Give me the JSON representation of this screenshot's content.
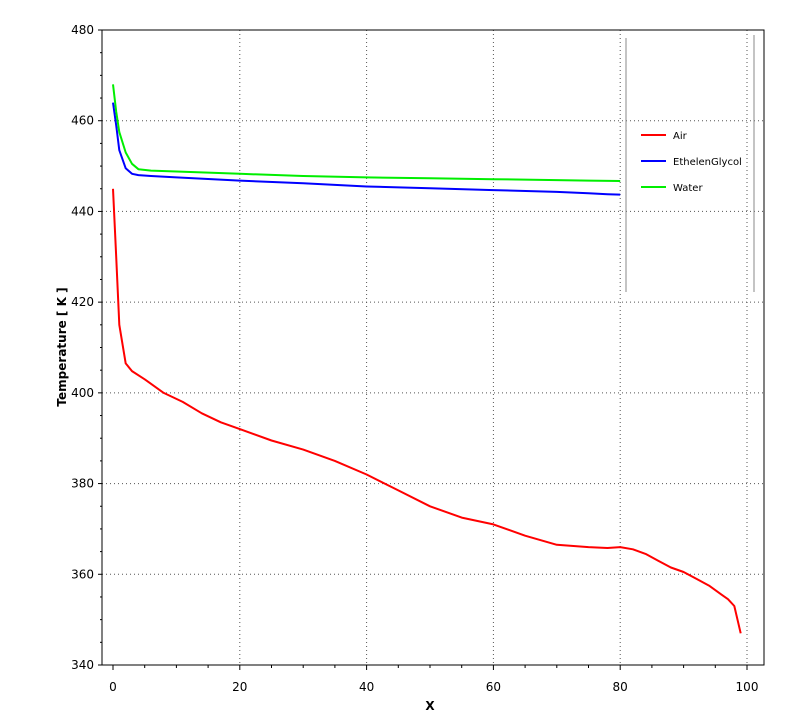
{
  "chart_data": {
    "type": "line",
    "title": "",
    "xlabel": "X",
    "ylabel": "Temperature [ K ]",
    "xlim": [
      0,
      100
    ],
    "ylim": [
      340,
      480
    ],
    "xticks": [
      0,
      20,
      40,
      60,
      80,
      100
    ],
    "yticks": [
      340,
      360,
      380,
      400,
      420,
      440,
      460,
      480
    ],
    "grid": true,
    "legend_position": "right",
    "series": [
      {
        "name": "Air",
        "color": "#ff0000",
        "x": [
          0,
          0.5,
          1,
          2,
          3,
          5,
          8,
          11,
          14,
          17,
          20,
          25,
          30,
          35,
          40,
          45,
          50,
          55,
          60,
          65,
          70,
          75,
          78,
          80,
          82,
          84,
          86,
          88,
          90,
          92,
          94,
          96,
          97,
          98,
          99
        ],
        "y": [
          445,
          430,
          415,
          406.5,
          404.8,
          403,
          400,
          398,
          395.5,
          393.5,
          392,
          389.5,
          387.5,
          385,
          382,
          378.5,
          375,
          372.5,
          371,
          368.5,
          366.5,
          366,
          365.8,
          366,
          365.5,
          364.5,
          363,
          361.5,
          360.5,
          359,
          357.5,
          355.5,
          354.5,
          353,
          347
        ]
      },
      {
        "name": "EthelenGlycol",
        "color": "#0000ff",
        "x": [
          0,
          0.5,
          1,
          2,
          3,
          4,
          6,
          10,
          20,
          30,
          40,
          50,
          60,
          70,
          75,
          78,
          80
        ],
        "y": [
          464,
          459,
          453.5,
          449.5,
          448.3,
          448,
          447.8,
          447.5,
          446.8,
          446.2,
          445.5,
          445.1,
          444.7,
          444.3,
          444,
          443.8,
          443.7
        ]
      },
      {
        "name": "Water",
        "color": "#00ee00",
        "x": [
          0,
          0.5,
          1,
          2,
          3,
          4,
          6,
          10,
          20,
          30,
          40,
          50,
          60,
          70,
          75,
          80
        ],
        "y": [
          468,
          462,
          457.5,
          453,
          450.5,
          449.3,
          449,
          448.8,
          448.3,
          447.8,
          447.5,
          447.3,
          447.1,
          446.9,
          446.8,
          446.7
        ]
      }
    ]
  }
}
